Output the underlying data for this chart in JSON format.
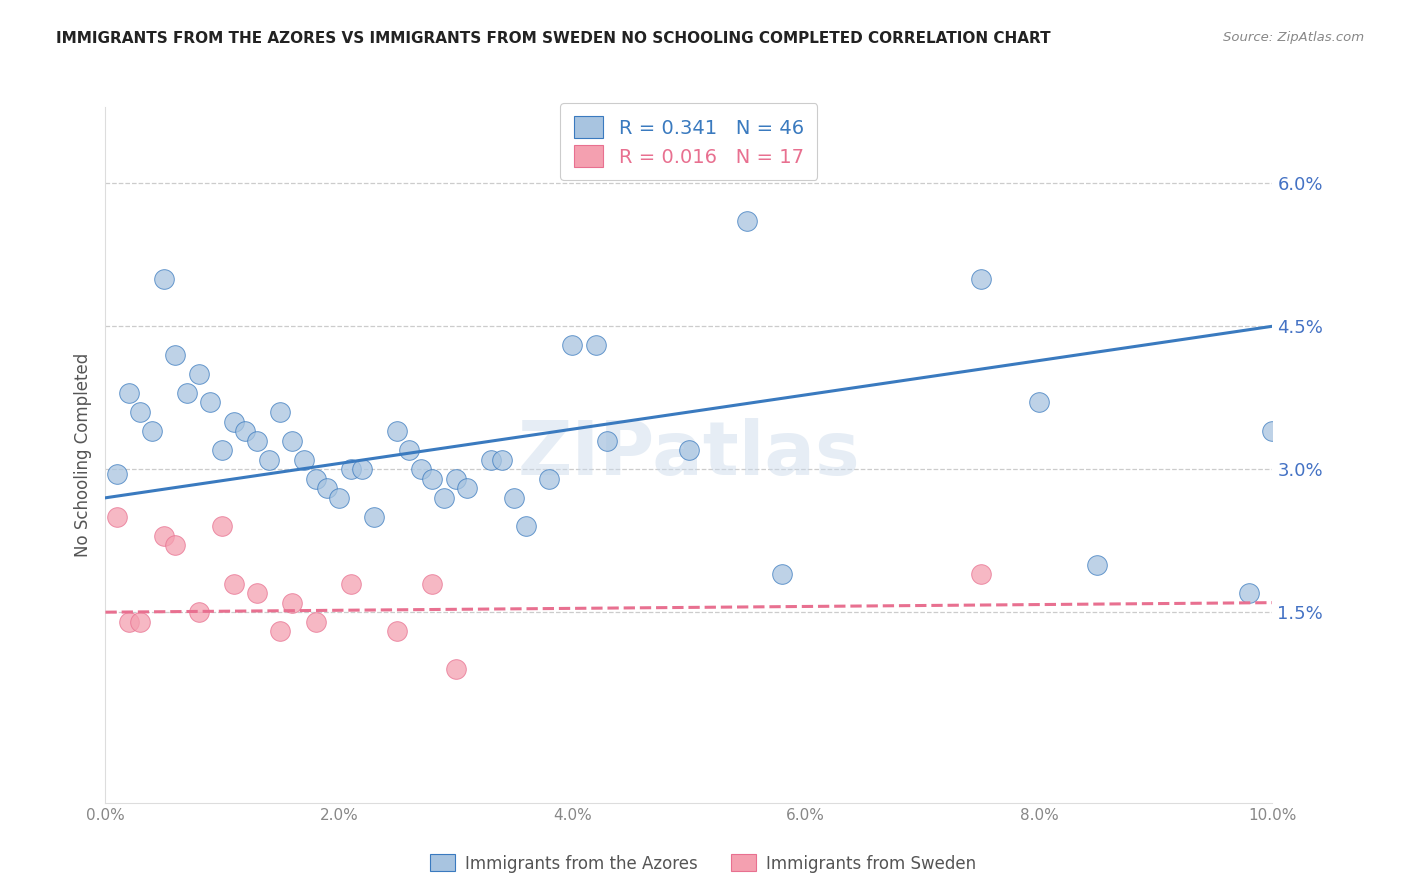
{
  "title": "IMMIGRANTS FROM THE AZORES VS IMMIGRANTS FROM SWEDEN NO SCHOOLING COMPLETED CORRELATION CHART",
  "source": "Source: ZipAtlas.com",
  "ylabel": "No Schooling Completed",
  "right_ytick_labels": [
    "1.5%",
    "3.0%",
    "4.5%",
    "6.0%"
  ],
  "right_ytick_values": [
    0.015,
    0.03,
    0.045,
    0.06
  ],
  "xlim": [
    0.0,
    0.1
  ],
  "ylim": [
    -0.005,
    0.068
  ],
  "legend_entries": [
    {
      "label": "R = 0.341   N = 46",
      "color": "#a8c4e0"
    },
    {
      "label": "R = 0.016   N = 17",
      "color": "#f4a0b0"
    }
  ],
  "watermark": "ZIPatlas",
  "blue_scatter_x": [
    0.001,
    0.002,
    0.003,
    0.004,
    0.005,
    0.006,
    0.007,
    0.008,
    0.009,
    0.01,
    0.011,
    0.012,
    0.013,
    0.014,
    0.015,
    0.016,
    0.017,
    0.018,
    0.019,
    0.02,
    0.021,
    0.022,
    0.023,
    0.025,
    0.026,
    0.027,
    0.028,
    0.029,
    0.03,
    0.031,
    0.033,
    0.034,
    0.035,
    0.036,
    0.038,
    0.04,
    0.042,
    0.043,
    0.05,
    0.055,
    0.058,
    0.075,
    0.08,
    0.085,
    0.098,
    0.1
  ],
  "blue_scatter_y": [
    0.0295,
    0.038,
    0.036,
    0.034,
    0.05,
    0.042,
    0.038,
    0.04,
    0.037,
    0.032,
    0.035,
    0.034,
    0.033,
    0.031,
    0.036,
    0.033,
    0.031,
    0.029,
    0.028,
    0.027,
    0.03,
    0.03,
    0.025,
    0.034,
    0.032,
    0.03,
    0.029,
    0.027,
    0.029,
    0.028,
    0.031,
    0.031,
    0.027,
    0.024,
    0.029,
    0.043,
    0.043,
    0.033,
    0.032,
    0.056,
    0.019,
    0.05,
    0.037,
    0.02,
    0.017,
    0.034
  ],
  "pink_scatter_x": [
    0.001,
    0.002,
    0.003,
    0.005,
    0.006,
    0.008,
    0.01,
    0.011,
    0.013,
    0.015,
    0.016,
    0.018,
    0.021,
    0.025,
    0.028,
    0.03,
    0.075
  ],
  "pink_scatter_y": [
    0.025,
    0.014,
    0.014,
    0.023,
    0.022,
    0.015,
    0.024,
    0.018,
    0.017,
    0.013,
    0.016,
    0.014,
    0.018,
    0.013,
    0.018,
    0.009,
    0.019
  ],
  "blue_line_x0": 0.0,
  "blue_line_y0": 0.027,
  "blue_line_x1": 0.1,
  "blue_line_y1": 0.045,
  "pink_line_x0": 0.0,
  "pink_line_y0": 0.015,
  "pink_line_x1": 0.1,
  "pink_line_y1": 0.016,
  "blue_line_color": "#3a7abf",
  "pink_line_color": "#e87090",
  "blue_scatter_color": "#a8c4e0",
  "pink_scatter_color": "#f4a0b0",
  "background_color": "#ffffff",
  "grid_color": "#cccccc",
  "title_color": "#222222",
  "right_axis_label_color": "#4472c4"
}
